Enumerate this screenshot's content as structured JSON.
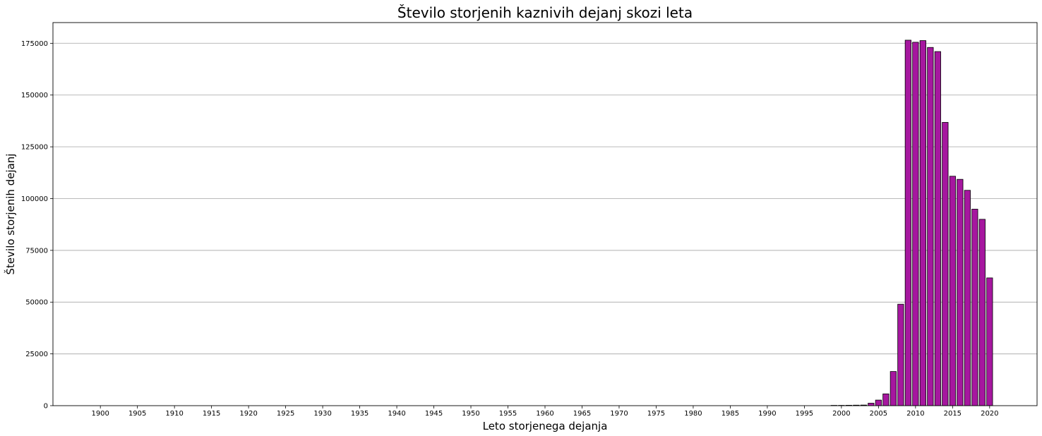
{
  "chart_data": {
    "type": "bar",
    "title": "Število storjenih kaznivih dejanj skozi leta",
    "xlabel": "Leto storjenega dejanja",
    "ylabel": "Število storjenih dejanj",
    "bar_color": "#a6179f",
    "edge_color": "#000000",
    "grid": "y",
    "xlim": [
      1893.6,
      2026.4
    ],
    "ylim": [
      0,
      185000
    ],
    "x_ticks": [
      1900,
      1905,
      1910,
      1915,
      1920,
      1925,
      1930,
      1935,
      1940,
      1945,
      1950,
      1955,
      1960,
      1965,
      1970,
      1975,
      1980,
      1985,
      1990,
      1995,
      2000,
      2005,
      2010,
      2015,
      2020
    ],
    "y_ticks": [
      0,
      25000,
      50000,
      75000,
      100000,
      125000,
      150000,
      175000
    ],
    "categories": [
      1999,
      2000,
      2001,
      2002,
      2003,
      2004,
      2005,
      2006,
      2007,
      2008,
      2009,
      2010,
      2011,
      2012,
      2013,
      2014,
      2015,
      2016,
      2017,
      2018,
      2019,
      2020
    ],
    "values": [
      150,
      150,
      200,
      250,
      300,
      1200,
      2700,
      5700,
      16500,
      49000,
      176500,
      175500,
      176300,
      173000,
      171000,
      136800,
      110800,
      109300,
      104000,
      94900,
      90000,
      61700
    ]
  }
}
